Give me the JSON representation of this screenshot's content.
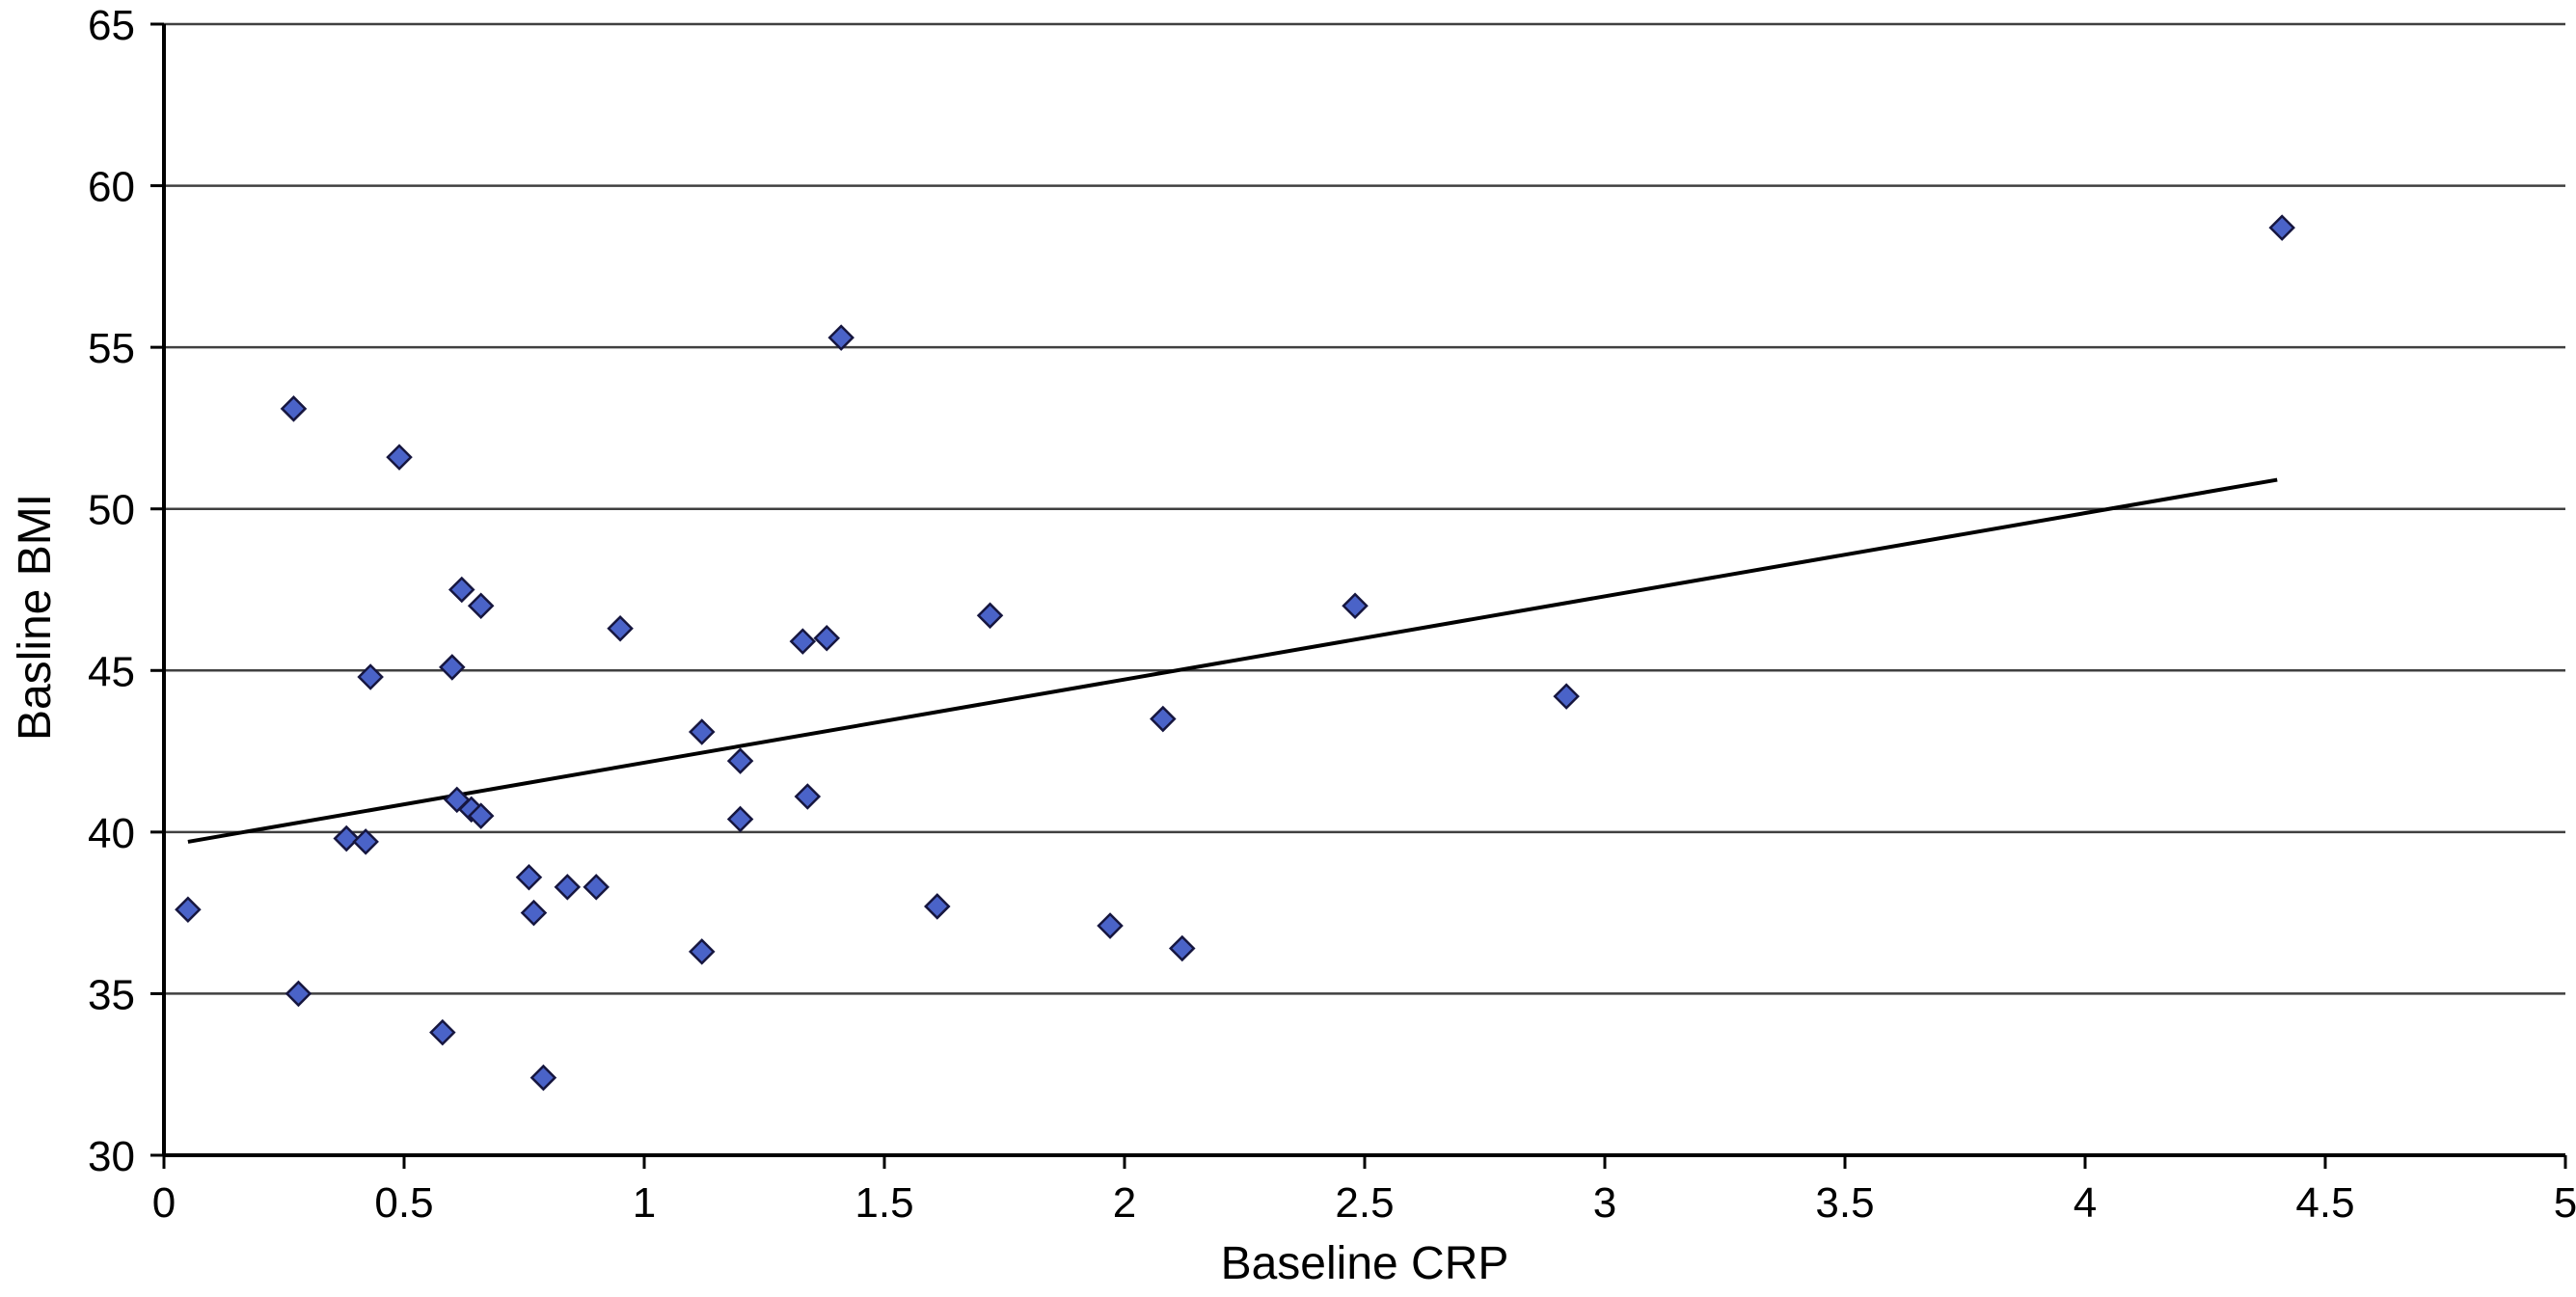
{
  "chart_data": {
    "type": "scatter",
    "title": "",
    "xlabel": "Baseline CRP",
    "ylabel": "Basline BMI",
    "xlim": [
      0,
      5
    ],
    "ylim": [
      30,
      65
    ],
    "x_ticks": [
      {
        "value": 0,
        "label": "0"
      },
      {
        "value": 0.5,
        "label": "0.5"
      },
      {
        "value": 1,
        "label": "1"
      },
      {
        "value": 1.5,
        "label": "1.5"
      },
      {
        "value": 2,
        "label": "2"
      },
      {
        "value": 2.5,
        "label": "2.5"
      },
      {
        "value": 3,
        "label": "3"
      },
      {
        "value": 3.5,
        "label": "3.5"
      },
      {
        "value": 4,
        "label": "4"
      },
      {
        "value": 4.5,
        "label": "4.5"
      },
      {
        "value": 5,
        "label": "5"
      }
    ],
    "y_ticks": [
      {
        "value": 30,
        "label": "30"
      },
      {
        "value": 35,
        "label": "35"
      },
      {
        "value": 40,
        "label": "40"
      },
      {
        "value": 45,
        "label": "45"
      },
      {
        "value": 50,
        "label": "50"
      },
      {
        "value": 55,
        "label": "55"
      },
      {
        "value": 60,
        "label": "60"
      },
      {
        "value": 65,
        "label": "65"
      }
    ],
    "grid": "horizontal",
    "legend": "none",
    "colors": {
      "marker_fill": "#4a63c8",
      "marker_stroke": "#16163f",
      "gridline": "#404040",
      "axis": "#000000",
      "trendline": "#000000",
      "background": "#ffffff"
    },
    "marker_shape": "diamond",
    "points": [
      [
        0.05,
        37.6
      ],
      [
        0.27,
        53.1
      ],
      [
        0.28,
        35.0
      ],
      [
        0.38,
        39.8
      ],
      [
        0.42,
        39.7
      ],
      [
        0.43,
        44.8
      ],
      [
        0.49,
        51.6
      ],
      [
        0.58,
        33.8
      ],
      [
        0.6,
        45.1
      ],
      [
        0.61,
        41.0
      ],
      [
        0.62,
        47.5
      ],
      [
        0.64,
        40.7
      ],
      [
        0.66,
        40.5
      ],
      [
        0.66,
        47.0
      ],
      [
        0.76,
        38.6
      ],
      [
        0.77,
        37.5
      ],
      [
        0.79,
        32.4
      ],
      [
        0.84,
        38.3
      ],
      [
        0.9,
        38.3
      ],
      [
        0.95,
        46.3
      ],
      [
        1.12,
        43.1
      ],
      [
        1.12,
        36.3
      ],
      [
        1.2,
        42.2
      ],
      [
        1.2,
        40.4
      ],
      [
        1.33,
        45.9
      ],
      [
        1.34,
        41.1
      ],
      [
        1.38,
        46.0
      ],
      [
        1.41,
        55.3
      ],
      [
        1.61,
        37.7
      ],
      [
        1.72,
        46.7
      ],
      [
        1.97,
        37.1
      ],
      [
        2.08,
        43.5
      ],
      [
        2.12,
        36.4
      ],
      [
        2.48,
        47.0
      ],
      [
        2.92,
        44.2
      ],
      [
        4.41,
        58.7
      ]
    ],
    "trendline": {
      "x1": 0.05,
      "y1": 39.7,
      "x2": 4.4,
      "y2": 50.9
    }
  }
}
